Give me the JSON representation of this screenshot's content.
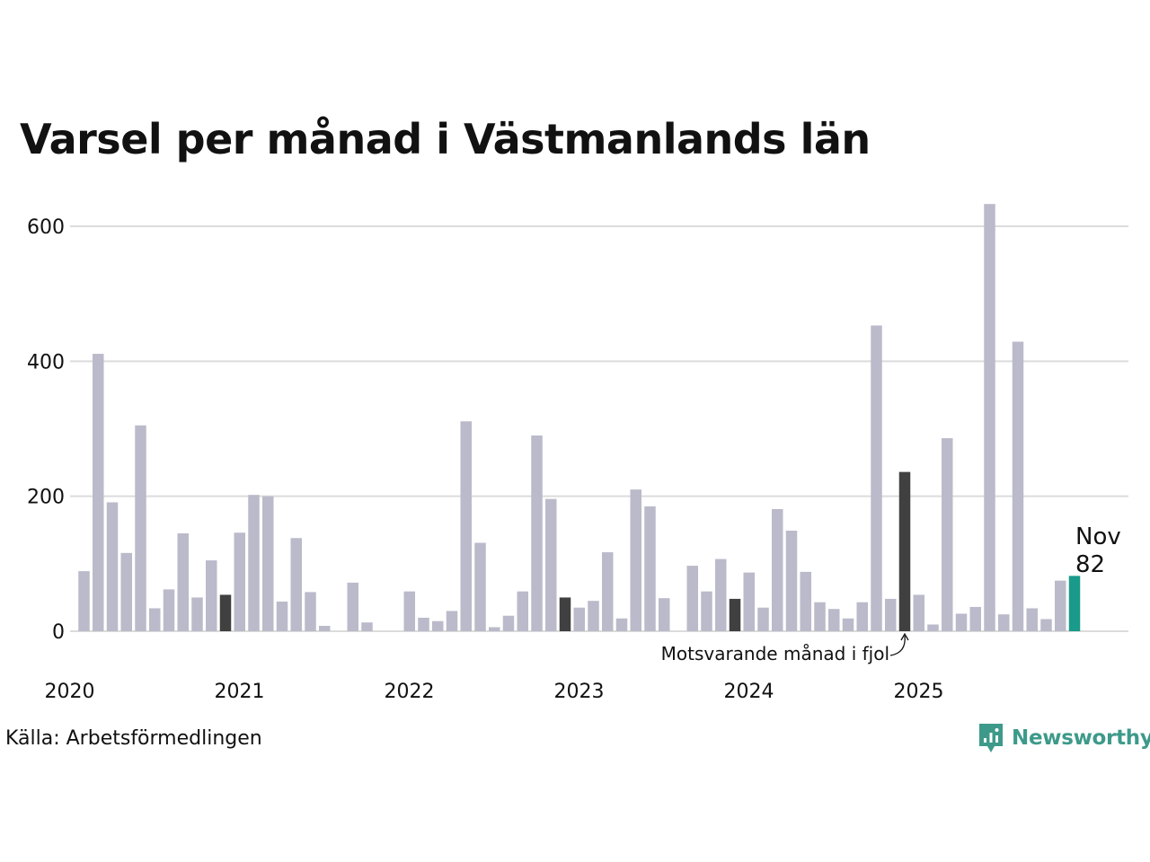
{
  "chart_data": {
    "type": "bar",
    "title": "Varsel per månad i Västmanlands län",
    "xlabel": "",
    "ylabel": "",
    "ylim": [
      0,
      640
    ],
    "yticks": [
      "0",
      "200",
      "400",
      "600"
    ],
    "year_labels": [
      "2020",
      "2021",
      "2022",
      "2023",
      "2024",
      "2025"
    ],
    "start": "2020-01",
    "values": [
      89,
      411,
      191,
      116,
      305,
      34,
      62,
      145,
      50,
      105,
      54,
      146,
      202,
      200,
      44,
      138,
      58,
      8,
      0,
      72,
      13,
      0,
      0,
      59,
      20,
      15,
      30,
      311,
      131,
      6,
      23,
      59,
      290,
      196,
      50,
      35,
      45,
      117,
      19,
      210,
      185,
      49,
      0,
      97,
      59,
      107,
      48,
      87,
      35,
      181,
      149,
      88,
      43,
      33,
      19,
      43,
      453,
      48,
      236,
      54,
      10,
      286,
      26,
      36,
      633,
      25,
      429,
      34,
      18,
      75,
      82
    ],
    "highlight_same_month_indices": [
      10,
      22,
      34,
      46,
      58
    ],
    "current_index": 70,
    "current_label": {
      "month": "Nov",
      "value": "82"
    },
    "annotation": "Motsvarande månad i fjol",
    "colors": {
      "bar": "#bbbaca",
      "same_month": "#404040",
      "current": "#1a9a8a",
      "grid": "#dcdcdc"
    }
  },
  "source": "Källa: Arbetsförmedlingen",
  "brand": "Newsworthy"
}
